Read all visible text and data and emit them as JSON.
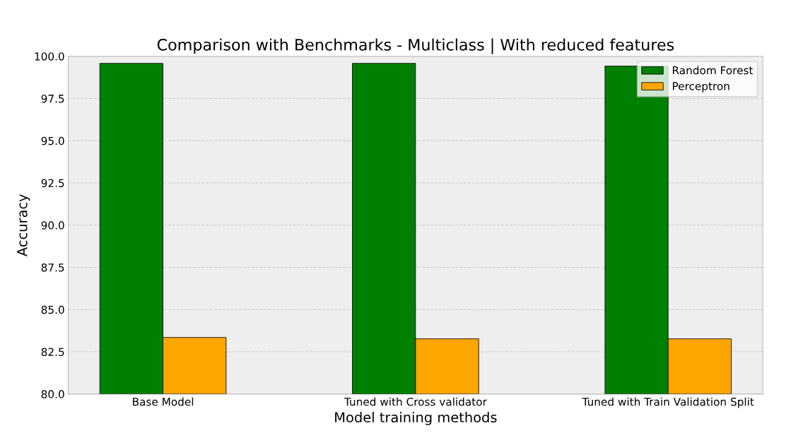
{
  "chart_data": {
    "type": "bar",
    "title": "Comparison with Benchmarks - Multiclass | With reduced features",
    "xlabel": "Model training methods",
    "ylabel": "Accuracy",
    "categories": [
      "Base Model",
      "Tuned with Cross validator",
      "Tuned with Train Validation Split"
    ],
    "series": [
      {
        "name": "Random Forest",
        "color": "#008000",
        "values": [
          99.58,
          99.58,
          99.42
        ]
      },
      {
        "name": "Perceptron",
        "color": "#ffa500",
        "values": [
          83.35,
          83.27,
          83.27
        ]
      }
    ],
    "ylim": [
      80,
      100
    ],
    "yticks": [
      {
        "value": 80,
        "label": "80.0"
      },
      {
        "value": 82.5,
        "label": "82.5"
      },
      {
        "value": 85,
        "label": "85.0"
      },
      {
        "value": 87.5,
        "label": "87.5"
      },
      {
        "value": 90,
        "label": "90.0"
      },
      {
        "value": 92.5,
        "label": "92.5"
      },
      {
        "value": 95,
        "label": "95.0"
      },
      {
        "value": 97.5,
        "label": "97.5"
      },
      {
        "value": 100,
        "label": "100.0"
      }
    ],
    "grid": "y",
    "legend": "top right"
  }
}
